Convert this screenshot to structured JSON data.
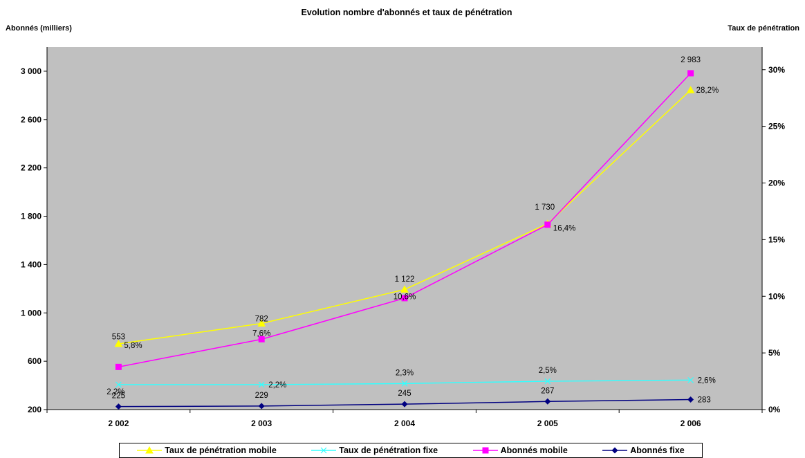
{
  "chart_data": {
    "type": "line",
    "title": "Evolution nombre d'abonnés et taux de pénétration",
    "ylabel_left": "Abonnés (milliers)",
    "ylabel_right": "Taux de pénétration",
    "categories": [
      "2 002",
      "2 003",
      "2 004",
      "2 005",
      "2 006"
    ],
    "ylim_left": [
      200,
      3200
    ],
    "yticks_left": [
      200,
      600,
      1000,
      1400,
      1800,
      2200,
      2600,
      3000
    ],
    "ytick_labels_left": [
      "200",
      "600",
      "1 000",
      "1 400",
      "1 800",
      "2 200",
      "2 600",
      "3 000"
    ],
    "ylim_right": [
      0,
      0.32
    ],
    "yticks_right": [
      0,
      0.05,
      0.1,
      0.15,
      0.2,
      0.25,
      0.3
    ],
    "ytick_labels_right": [
      "0%",
      "5%",
      "10%",
      "15%",
      "20%",
      "25%",
      "30%"
    ],
    "grid": false,
    "legend_position": "bottom",
    "series": [
      {
        "name": "Taux de pénétration mobile",
        "axis": "right",
        "marker": "triangle",
        "color": "#FFFF00",
        "values": [
          0.058,
          0.076,
          0.106,
          0.164,
          0.282
        ],
        "labels": [
          "5,8%",
          "7,6%",
          "10,6%",
          "16,4%",
          "28,2%"
        ]
      },
      {
        "name": "Taux de pénétration fixe",
        "axis": "right",
        "marker": "x",
        "color": "#33FFFF",
        "values": [
          0.022,
          0.022,
          0.023,
          0.025,
          0.026
        ],
        "labels": [
          "2,2%",
          "2,2%",
          "2,3%",
          "2,5%",
          "2,6%"
        ]
      },
      {
        "name": "Abonnés mobile",
        "axis": "left",
        "marker": "square",
        "color": "#FF00FF",
        "values": [
          553,
          782,
          1122,
          1730,
          2983
        ],
        "labels": [
          "553",
          "782",
          "1 122",
          "1 730",
          "2 983"
        ]
      },
      {
        "name": "Abonnés fixe",
        "axis": "left",
        "marker": "diamond",
        "color": "#000080",
        "values": [
          225,
          229,
          245,
          267,
          283
        ],
        "labels": [
          "225",
          "229",
          "245",
          "267",
          "283"
        ]
      }
    ]
  }
}
